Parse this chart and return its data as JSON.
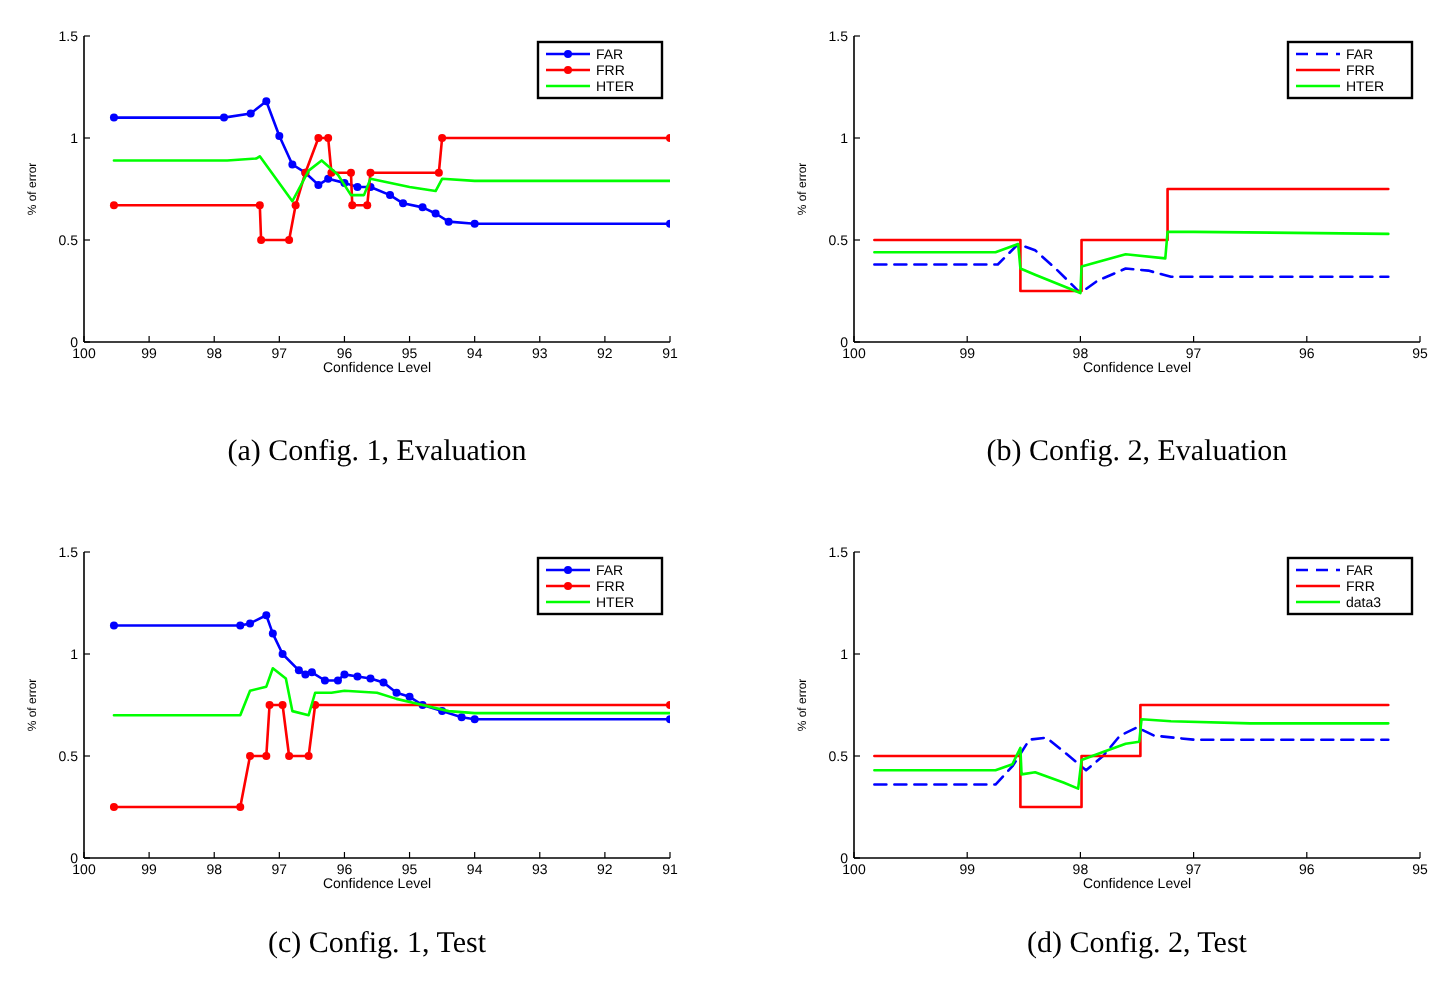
{
  "chart_data": [
    {
      "type": "line",
      "title": "(a) Config. 1, Evaluation",
      "xlabel": "Confidence Level",
      "ylabel": "% of error",
      "xlim": [
        100,
        91
      ],
      "xticks": [
        100,
        99,
        98,
        97,
        96,
        95,
        94,
        93,
        92,
        91
      ],
      "ylim": [
        0,
        1.5
      ],
      "yticks": [
        0,
        0.5,
        1,
        1.5
      ],
      "legend": "top right",
      "series": [
        {
          "name": "FAR",
          "color": "#0000ff",
          "marker": "circle",
          "line_style": "solid",
          "x": [
            99.54,
            97.85,
            97.44,
            97.2,
            97.0,
            96.8,
            96.6,
            96.4,
            96.25,
            96.0,
            95.8,
            95.6,
            95.3,
            95.1,
            94.8,
            94.6,
            94.4,
            94.0,
            91
          ],
          "values": [
            1.1,
            1.1,
            1.12,
            1.18,
            1.01,
            0.87,
            0.83,
            0.77,
            0.8,
            0.78,
            0.76,
            0.76,
            0.72,
            0.68,
            0.66,
            0.63,
            0.59,
            0.58,
            0.58
          ]
        },
        {
          "name": "FRR",
          "color": "#ff0000",
          "marker": "circle",
          "line_style": "solid",
          "x": [
            99.54,
            97.3,
            97.28,
            96.85,
            96.75,
            96.6,
            96.4,
            96.25,
            96.2,
            95.9,
            95.88,
            95.65,
            95.6,
            94.55,
            94.5,
            91
          ],
          "values": [
            0.67,
            0.67,
            0.5,
            0.5,
            0.67,
            0.83,
            1.0,
            1.0,
            0.83,
            0.83,
            0.67,
            0.67,
            0.83,
            0.83,
            1.0,
            1.0
          ]
        },
        {
          "name": "HTER",
          "color": "#00ff00",
          "marker": "none",
          "line_style": "solid",
          "x": [
            99.54,
            97.8,
            97.35,
            97.3,
            96.8,
            96.55,
            96.35,
            96.1,
            95.9,
            95.7,
            95.6,
            95.0,
            94.6,
            94.5,
            94.0,
            91
          ],
          "values": [
            0.89,
            0.89,
            0.9,
            0.91,
            0.69,
            0.84,
            0.89,
            0.82,
            0.72,
            0.72,
            0.8,
            0.76,
            0.74,
            0.8,
            0.79,
            0.79
          ]
        }
      ]
    },
    {
      "type": "line",
      "title": "(b) Config. 2, Evaluation",
      "xlabel": "Confidence Level",
      "ylabel": "% of error",
      "xlim": [
        100,
        95
      ],
      "xticks": [
        100,
        99,
        98,
        97,
        96,
        95
      ],
      "ylim": [
        0,
        1.5
      ],
      "yticks": [
        0,
        0.5,
        1,
        1.5
      ],
      "legend": "top right",
      "series": [
        {
          "name": "FAR",
          "color": "#0000ff",
          "marker": "none",
          "line_style": "dashed",
          "x": [
            99.82,
            98.73,
            98.55,
            98.4,
            98.2,
            98.0,
            97.85,
            97.6,
            97.4,
            97.2,
            95.28
          ],
          "values": [
            0.38,
            0.38,
            0.48,
            0.45,
            0.35,
            0.24,
            0.3,
            0.36,
            0.35,
            0.32,
            0.32
          ]
        },
        {
          "name": "FRR",
          "color": "#ff0000",
          "marker": "none",
          "line_style": "solid",
          "x": [
            99.82,
            98.53,
            98.53,
            97.99,
            97.99,
            97.23,
            97.23,
            95.28
          ],
          "values": [
            0.5,
            0.5,
            0.25,
            0.25,
            0.5,
            0.5,
            0.75,
            0.75
          ]
        },
        {
          "name": "HTER",
          "color": "#00ff00",
          "marker": "none",
          "line_style": "solid",
          "x": [
            99.82,
            98.75,
            98.55,
            98.53,
            98.4,
            98.0,
            97.99,
            97.8,
            97.6,
            97.25,
            97.23,
            97.0,
            95.28
          ],
          "values": [
            0.44,
            0.44,
            0.48,
            0.36,
            0.33,
            0.24,
            0.37,
            0.4,
            0.43,
            0.41,
            0.54,
            0.54,
            0.53
          ]
        }
      ]
    },
    {
      "type": "line",
      "title": "(c) Config. 1, Test",
      "xlabel": "Confidence Level",
      "ylabel": "% of error",
      "xlim": [
        100,
        91
      ],
      "xticks": [
        100,
        99,
        98,
        97,
        96,
        95,
        94,
        93,
        92,
        91
      ],
      "ylim": [
        0,
        1.5
      ],
      "yticks": [
        0,
        0.5,
        1,
        1.5
      ],
      "legend": "top right",
      "series": [
        {
          "name": "FAR",
          "color": "#0000ff",
          "marker": "circle",
          "line_style": "solid",
          "x": [
            99.54,
            97.6,
            97.45,
            97.2,
            97.1,
            96.95,
            96.7,
            96.6,
            96.5,
            96.3,
            96.1,
            96.0,
            95.8,
            95.6,
            95.4,
            95.2,
            95.0,
            94.8,
            94.5,
            94.2,
            94.0,
            91
          ],
          "values": [
            1.14,
            1.14,
            1.15,
            1.19,
            1.1,
            1.0,
            0.92,
            0.9,
            0.91,
            0.87,
            0.87,
            0.9,
            0.89,
            0.88,
            0.86,
            0.81,
            0.79,
            0.75,
            0.72,
            0.69,
            0.68,
            0.68
          ]
        },
        {
          "name": "FRR",
          "color": "#ff0000",
          "marker": "circle",
          "line_style": "solid",
          "x": [
            99.54,
            97.6,
            97.45,
            97.2,
            97.15,
            96.95,
            96.85,
            96.55,
            96.45,
            91
          ],
          "values": [
            0.25,
            0.25,
            0.5,
            0.5,
            0.75,
            0.75,
            0.5,
            0.5,
            0.75,
            0.75
          ]
        },
        {
          "name": "HTER",
          "color": "#00ff00",
          "marker": "none",
          "line_style": "solid",
          "x": [
            99.54,
            97.6,
            97.45,
            97.2,
            97.1,
            96.9,
            96.8,
            96.55,
            96.45,
            96.2,
            96.0,
            95.5,
            95.2,
            94.8,
            94.4,
            94.0,
            91
          ],
          "values": [
            0.7,
            0.7,
            0.82,
            0.84,
            0.93,
            0.88,
            0.72,
            0.7,
            0.81,
            0.81,
            0.82,
            0.81,
            0.78,
            0.75,
            0.72,
            0.71,
            0.71
          ]
        }
      ]
    },
    {
      "type": "line",
      "title": "(d) Config. 2, Test",
      "xlabel": "Confidence Level",
      "ylabel": "% of error",
      "xlim": [
        100,
        95
      ],
      "xticks": [
        100,
        99,
        98,
        97,
        96,
        95
      ],
      "ylim": [
        0,
        1.5
      ],
      "yticks": [
        0,
        0.5,
        1,
        1.5
      ],
      "legend": "top right",
      "series": [
        {
          "name": "FAR",
          "color": "#0000ff",
          "marker": "none",
          "line_style": "dashed",
          "x": [
            99.82,
            98.75,
            98.6,
            98.45,
            98.3,
            98.1,
            97.95,
            97.8,
            97.65,
            97.5,
            97.35,
            97.0,
            95.28
          ],
          "values": [
            0.36,
            0.36,
            0.45,
            0.58,
            0.59,
            0.5,
            0.43,
            0.5,
            0.6,
            0.64,
            0.6,
            0.58,
            0.58
          ]
        },
        {
          "name": "FRR",
          "color": "#ff0000",
          "marker": "none",
          "line_style": "solid",
          "x": [
            99.82,
            98.53,
            98.53,
            97.99,
            97.99,
            97.47,
            97.47,
            95.28
          ],
          "values": [
            0.5,
            0.5,
            0.25,
            0.25,
            0.5,
            0.5,
            0.75,
            0.75
          ]
        },
        {
          "name": "data3",
          "color": "#00ff00",
          "marker": "none",
          "line_style": "solid",
          "x": [
            99.82,
            98.75,
            98.6,
            98.53,
            98.52,
            98.4,
            98.15,
            98.02,
            97.99,
            97.8,
            97.6,
            97.48,
            97.46,
            97.2,
            96.5,
            95.28
          ],
          "values": [
            0.43,
            0.43,
            0.46,
            0.54,
            0.41,
            0.42,
            0.37,
            0.34,
            0.48,
            0.52,
            0.56,
            0.57,
            0.68,
            0.67,
            0.66,
            0.66
          ]
        }
      ]
    }
  ]
}
